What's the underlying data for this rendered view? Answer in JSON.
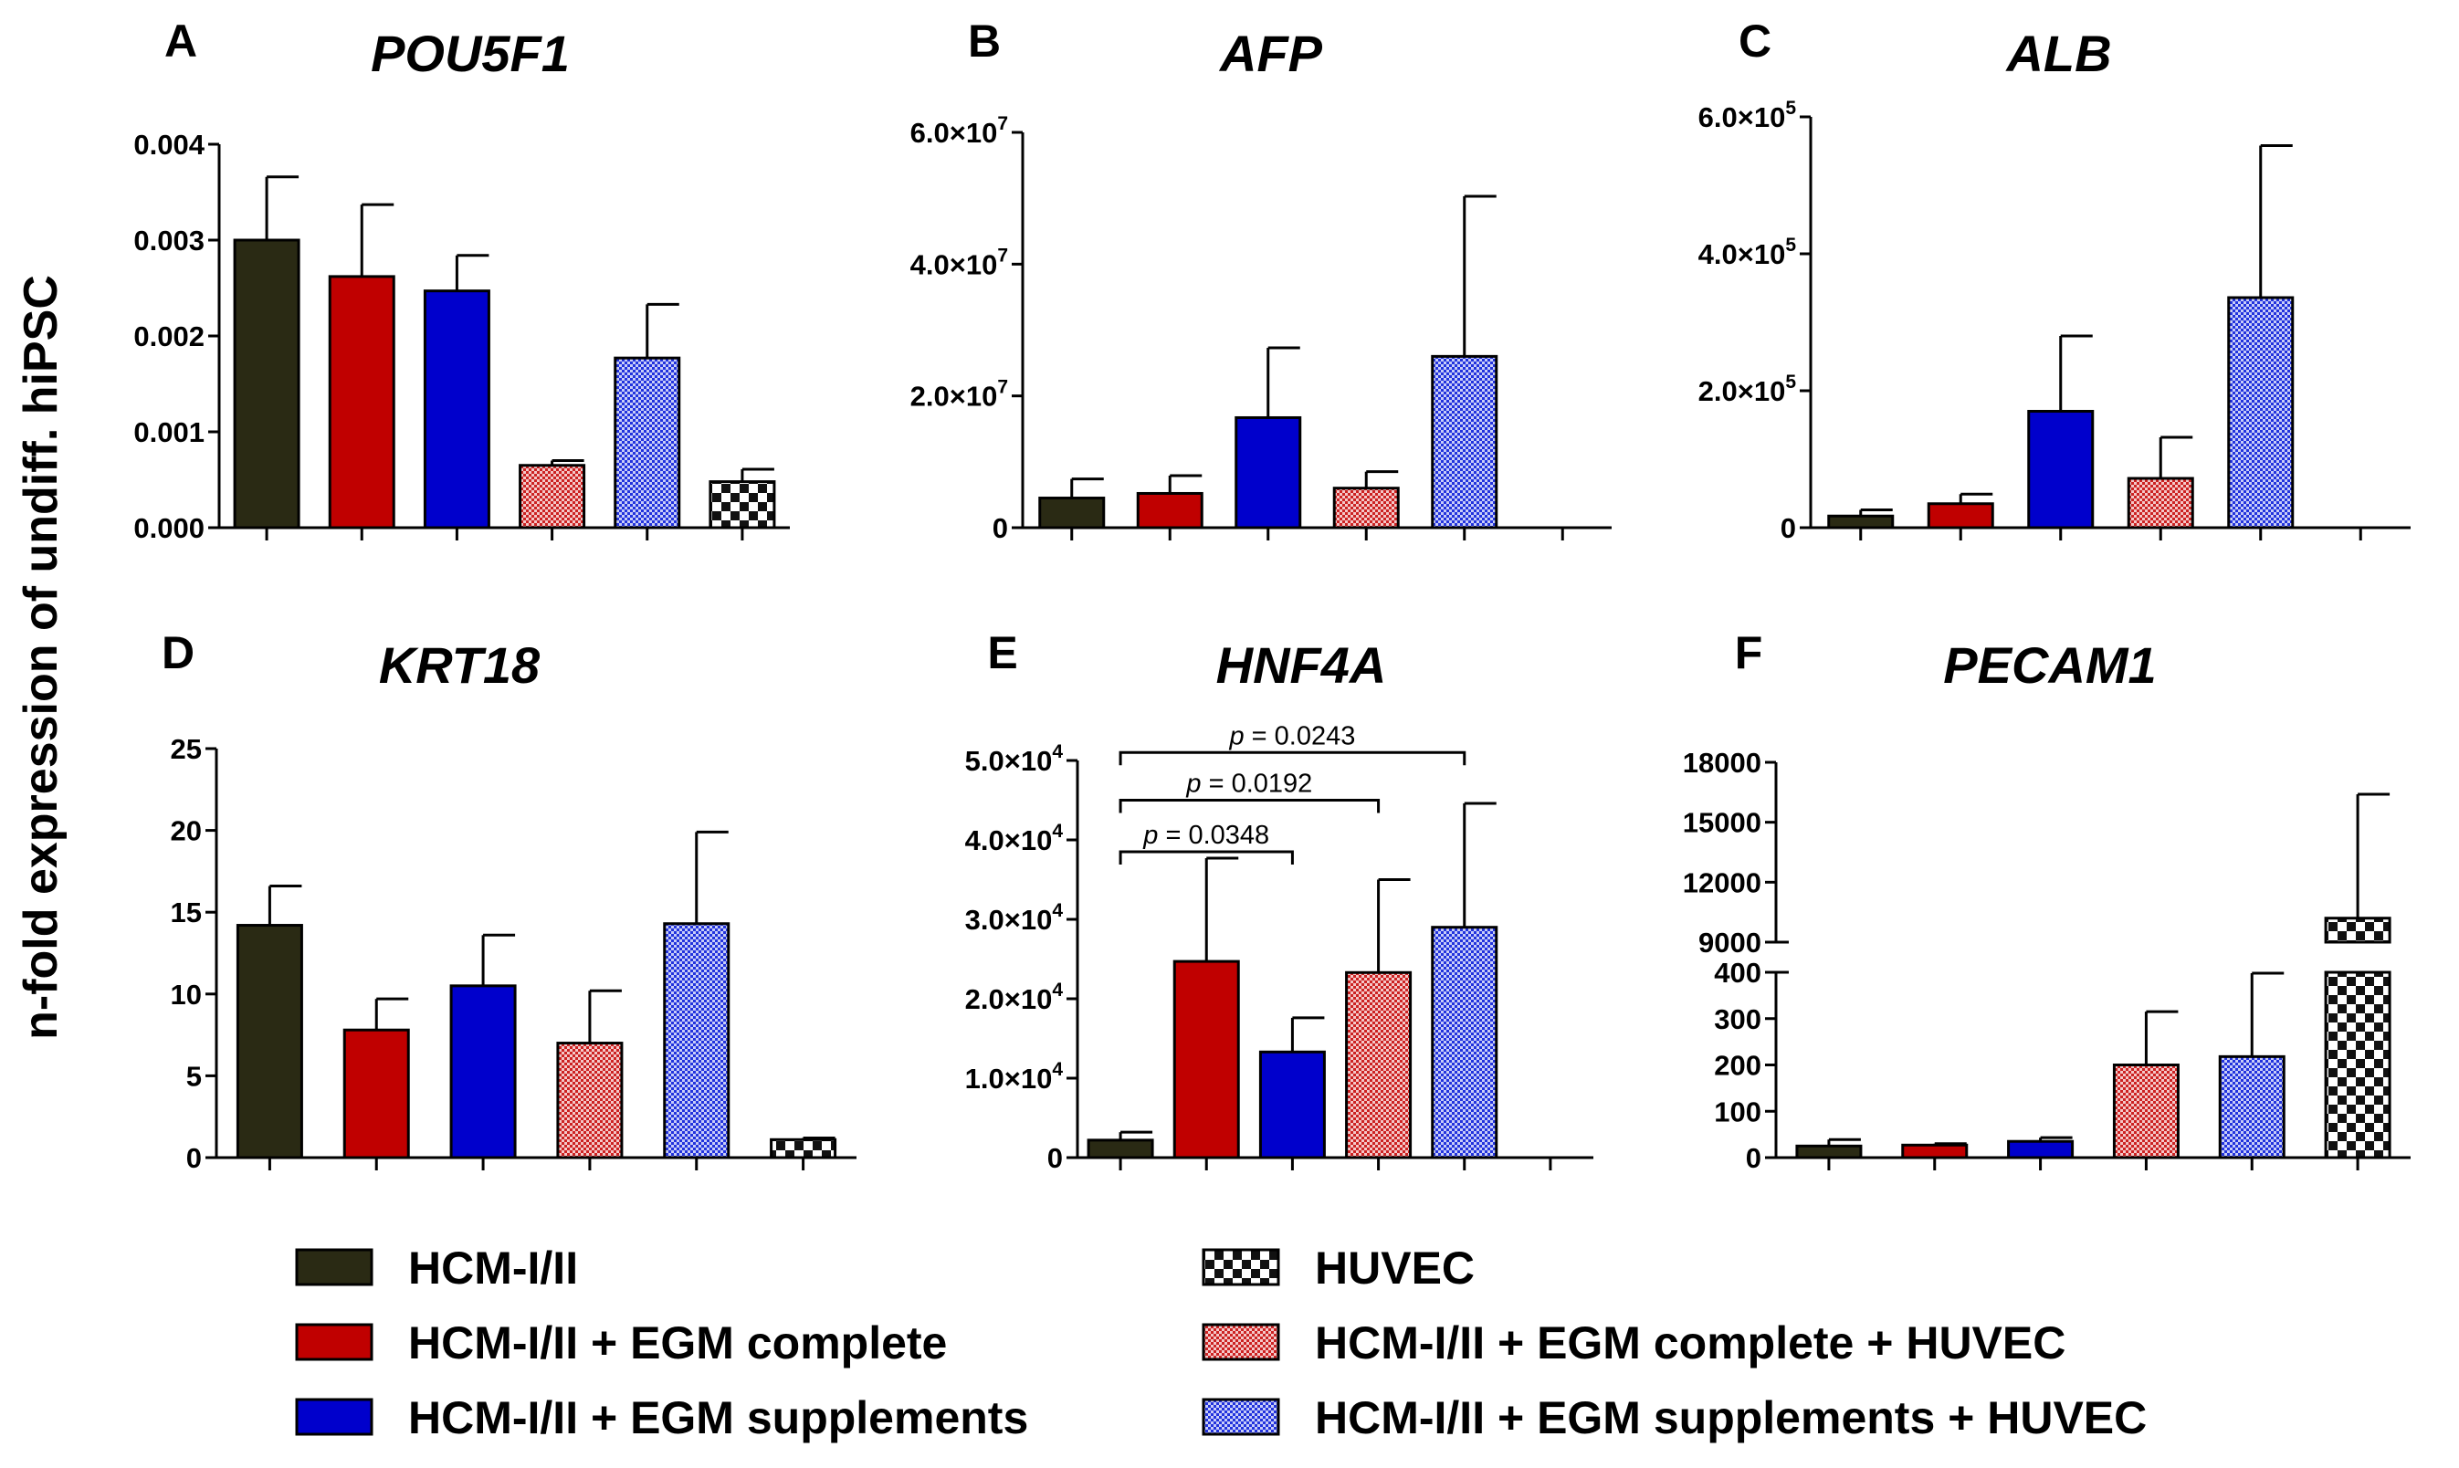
{
  "ylabel": "n-fold expression of undiff. hiPSC",
  "colors": {
    "hcm": "#2a2a14",
    "egm_complete": "#c00000",
    "egm_supplements": "#0000cc",
    "huvec_dark": "#111111",
    "complete_huvec_light": "#f4c8c8",
    "complete_huvec_dark": "#cc2222",
    "supplements_huvec_light": "#c8cdf8",
    "supplements_huvec_dark": "#2233dd"
  },
  "legend": [
    {
      "label": "HCM-I/II",
      "pattern": "solid-hcm"
    },
    {
      "label": "HCM-I/II + EGM complete",
      "pattern": "solid-red"
    },
    {
      "label": "HCM-I/II + EGM supplements",
      "pattern": "solid-blue"
    },
    {
      "label": "HUVEC",
      "pattern": "checker"
    },
    {
      "label": "HCM-I/II + EGM complete + HUVEC",
      "pattern": "hatch-red"
    },
    {
      "label": "HCM-I/II + EGM supplements + HUVEC",
      "pattern": "hatch-blue"
    }
  ],
  "chart_data": [
    {
      "panel": "A",
      "type": "bar",
      "title": "POU5F1",
      "categories": [
        "HCM-I/II",
        "HCM-I/II + EGM complete",
        "HCM-I/II + EGM supplements",
        "HCM-I/II + EGM complete + HUVEC",
        "HCM-I/II + EGM supplements + HUVEC",
        "HUVEC"
      ],
      "values": [
        0.003,
        0.00262,
        0.00247,
        0.00065,
        0.00177,
        0.00048
      ],
      "errors": [
        0.00066,
        0.00075,
        0.00037,
        5e-05,
        0.00056,
        0.00013
      ],
      "ylim": [
        0,
        0.004
      ],
      "yticks": [
        {
          "v": 0,
          "label": "0.000"
        },
        {
          "v": 0.001,
          "label": "0.001"
        },
        {
          "v": 0.002,
          "label": "0.002"
        },
        {
          "v": 0.003,
          "label": "0.003"
        },
        {
          "v": 0.004,
          "label": "0.004"
        }
      ]
    },
    {
      "panel": "B",
      "type": "bar",
      "title": "AFP",
      "categories": [
        "HCM-I/II",
        "HCM-I/II + EGM complete",
        "HCM-I/II + EGM supplements",
        "HCM-I/II + EGM complete + HUVEC",
        "HCM-I/II + EGM supplements + HUVEC",
        "HUVEC"
      ],
      "values": [
        4500000,
        5200000,
        16700000,
        6000000,
        26000000,
        null
      ],
      "errors": [
        2900000,
        2700000,
        10600000,
        2500000,
        24300000,
        null
      ],
      "ylim": [
        0,
        60000000
      ],
      "yticks": [
        {
          "v": 0,
          "label": "0"
        },
        {
          "v": 20000000,
          "label": "2.0×10",
          "exp": "7"
        },
        {
          "v": 40000000,
          "label": "4.0×10",
          "exp": "7"
        },
        {
          "v": 60000000,
          "label": "6.0×10",
          "exp": "7"
        }
      ]
    },
    {
      "panel": "C",
      "type": "bar",
      "title": "ALB",
      "categories": [
        "HCM-I/II",
        "HCM-I/II + EGM complete",
        "HCM-I/II + EGM supplements",
        "HCM-I/II + EGM complete + HUVEC",
        "HCM-I/II + EGM supplements + HUVEC",
        "HUVEC"
      ],
      "values": [
        17000,
        35000,
        170000,
        72000,
        336000,
        null
      ],
      "errors": [
        9000,
        14000,
        110000,
        60000,
        222000,
        null
      ],
      "ylim": [
        0,
        600000
      ],
      "yticks": [
        {
          "v": 0,
          "label": "0"
        },
        {
          "v": 200000,
          "label": "2.0×10",
          "exp": "5"
        },
        {
          "v": 400000,
          "label": "4.0×10",
          "exp": "5"
        },
        {
          "v": 600000,
          "label": "6.0×10",
          "exp": "5"
        }
      ]
    },
    {
      "panel": "D",
      "type": "bar",
      "title": "KRT18",
      "categories": [
        "HCM-I/II",
        "HCM-I/II + EGM complete",
        "HCM-I/II + EGM supplements",
        "HCM-I/II + EGM complete + HUVEC",
        "HCM-I/II + EGM supplements + HUVEC",
        "HUVEC"
      ],
      "values": [
        14.2,
        7.8,
        10.5,
        7.0,
        14.3,
        1.1
      ],
      "errors": [
        2.4,
        1.9,
        3.1,
        3.2,
        5.6,
        0.1
      ],
      "ylim": [
        0,
        25
      ],
      "yticks": [
        {
          "v": 0,
          "label": "0"
        },
        {
          "v": 5,
          "label": "5"
        },
        {
          "v": 10,
          "label": "10"
        },
        {
          "v": 15,
          "label": "15"
        },
        {
          "v": 20,
          "label": "20"
        },
        {
          "v": 25,
          "label": "25"
        }
      ]
    },
    {
      "panel": "E",
      "type": "bar",
      "title": "HNF4A",
      "categories": [
        "HCM-I/II",
        "HCM-I/II + EGM complete",
        "HCM-I/II + EGM supplements",
        "HCM-I/II + EGM complete + HUVEC",
        "HCM-I/II + EGM supplements + HUVEC",
        "HUVEC"
      ],
      "values": [
        2200,
        24700,
        13300,
        23300,
        29000,
        null
      ],
      "errors": [
        1000,
        13000,
        4300,
        11700,
        15600,
        null
      ],
      "ylim": [
        0,
        50000
      ],
      "yticks": [
        {
          "v": 0,
          "label": "0"
        },
        {
          "v": 10000,
          "label": "1.0×10",
          "exp": "4"
        },
        {
          "v": 20000,
          "label": "2.0×10",
          "exp": "4"
        },
        {
          "v": 30000,
          "label": "3.0×10",
          "exp": "4"
        },
        {
          "v": 40000,
          "label": "4.0×10",
          "exp": "4"
        },
        {
          "v": 50000,
          "label": "5.0×10",
          "exp": "4"
        }
      ],
      "significance": [
        {
          "from": 0,
          "to": 2,
          "text": "p = 0.0348",
          "y": 38500
        },
        {
          "from": 0,
          "to": 3,
          "text": "p = 0.0192",
          "y": 45000
        },
        {
          "from": 0,
          "to": 4,
          "text": "p = 0.0243",
          "y": 51000
        }
      ]
    },
    {
      "panel": "F",
      "type": "bar",
      "title": "PECAM1",
      "broken_axis": true,
      "categories": [
        "HCM-I/II",
        "HCM-I/II + EGM complete",
        "HCM-I/II + EGM supplements",
        "HCM-I/II + EGM complete + HUVEC",
        "HCM-I/II + EGM supplements + HUVEC",
        "HUVEC"
      ],
      "values": [
        25,
        27,
        35,
        200,
        218,
        10200
      ],
      "errors": [
        14,
        3,
        8,
        115,
        180,
        6200
      ],
      "ylim_lower": [
        0,
        400
      ],
      "ylim_upper": [
        9000,
        18000
      ],
      "yticks_lower": [
        {
          "v": 0,
          "label": "0"
        },
        {
          "v": 100,
          "label": "100"
        },
        {
          "v": 200,
          "label": "200"
        },
        {
          "v": 300,
          "label": "300"
        },
        {
          "v": 400,
          "label": "400"
        }
      ],
      "yticks_upper": [
        {
          "v": 9000,
          "label": "9000"
        },
        {
          "v": 12000,
          "label": "12000"
        },
        {
          "v": 15000,
          "label": "15000"
        },
        {
          "v": 18000,
          "label": "18000"
        }
      ]
    }
  ]
}
